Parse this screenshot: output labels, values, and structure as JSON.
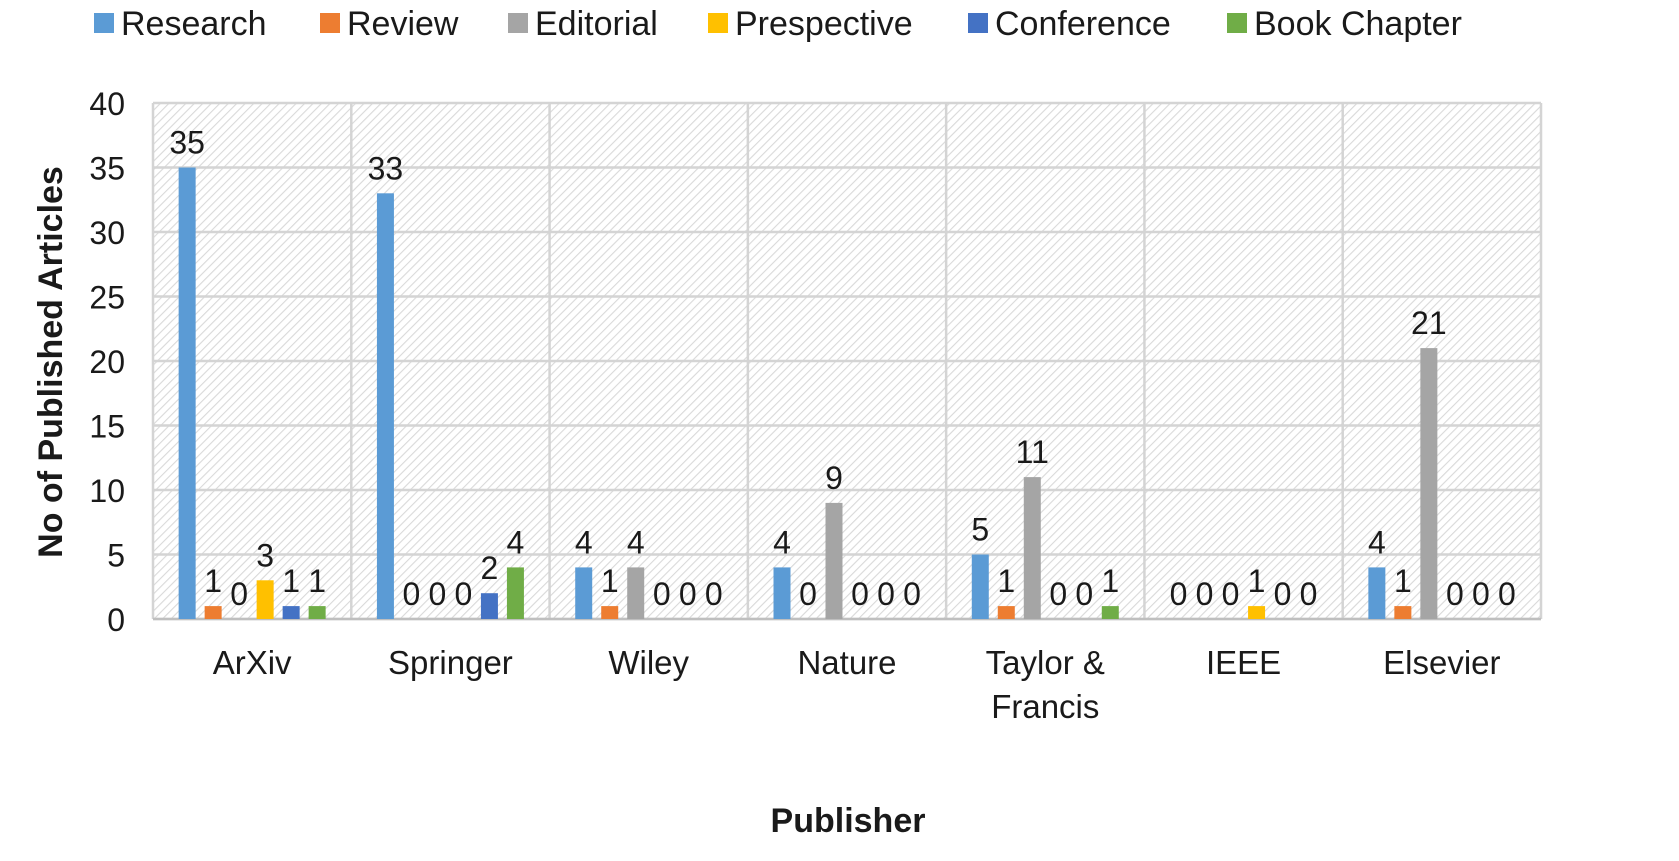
{
  "chart_data": {
    "type": "bar",
    "title": "",
    "xlabel": "Publisher",
    "ylabel": "No of Published Articles",
    "ylim": [
      0,
      40
    ],
    "yticks": [
      0,
      5,
      10,
      15,
      20,
      25,
      30,
      35,
      40
    ],
    "grid": true,
    "legend_position": "top",
    "categories": [
      [
        "ArXiv"
      ],
      [
        "Springer"
      ],
      [
        "Wiley"
      ],
      [
        "Nature"
      ],
      [
        "Taylor &",
        "Francis"
      ],
      [
        "IEEE"
      ],
      [
        "Elsevier"
      ]
    ],
    "series": [
      {
        "name": "Research",
        "color": "#5b9bd5",
        "values": [
          35,
          33,
          4,
          4,
          5,
          0,
          4
        ]
      },
      {
        "name": "Review",
        "color": "#ed7d31",
        "values": [
          1,
          0,
          1,
          0,
          1,
          0,
          1
        ]
      },
      {
        "name": "Editorial",
        "color": "#a5a5a5",
        "values": [
          0,
          0,
          4,
          9,
          11,
          0,
          21
        ]
      },
      {
        "name": "Prespective",
        "color": "#ffc000",
        "values": [
          3,
          0,
          0,
          0,
          0,
          1,
          0
        ]
      },
      {
        "name": "Conference",
        "color": "#4472c4",
        "values": [
          1,
          2,
          0,
          0,
          0,
          0,
          0
        ]
      },
      {
        "name": "Book Chapter",
        "color": "#70ad47",
        "values": [
          1,
          4,
          0,
          0,
          1,
          0,
          0
        ]
      }
    ]
  }
}
